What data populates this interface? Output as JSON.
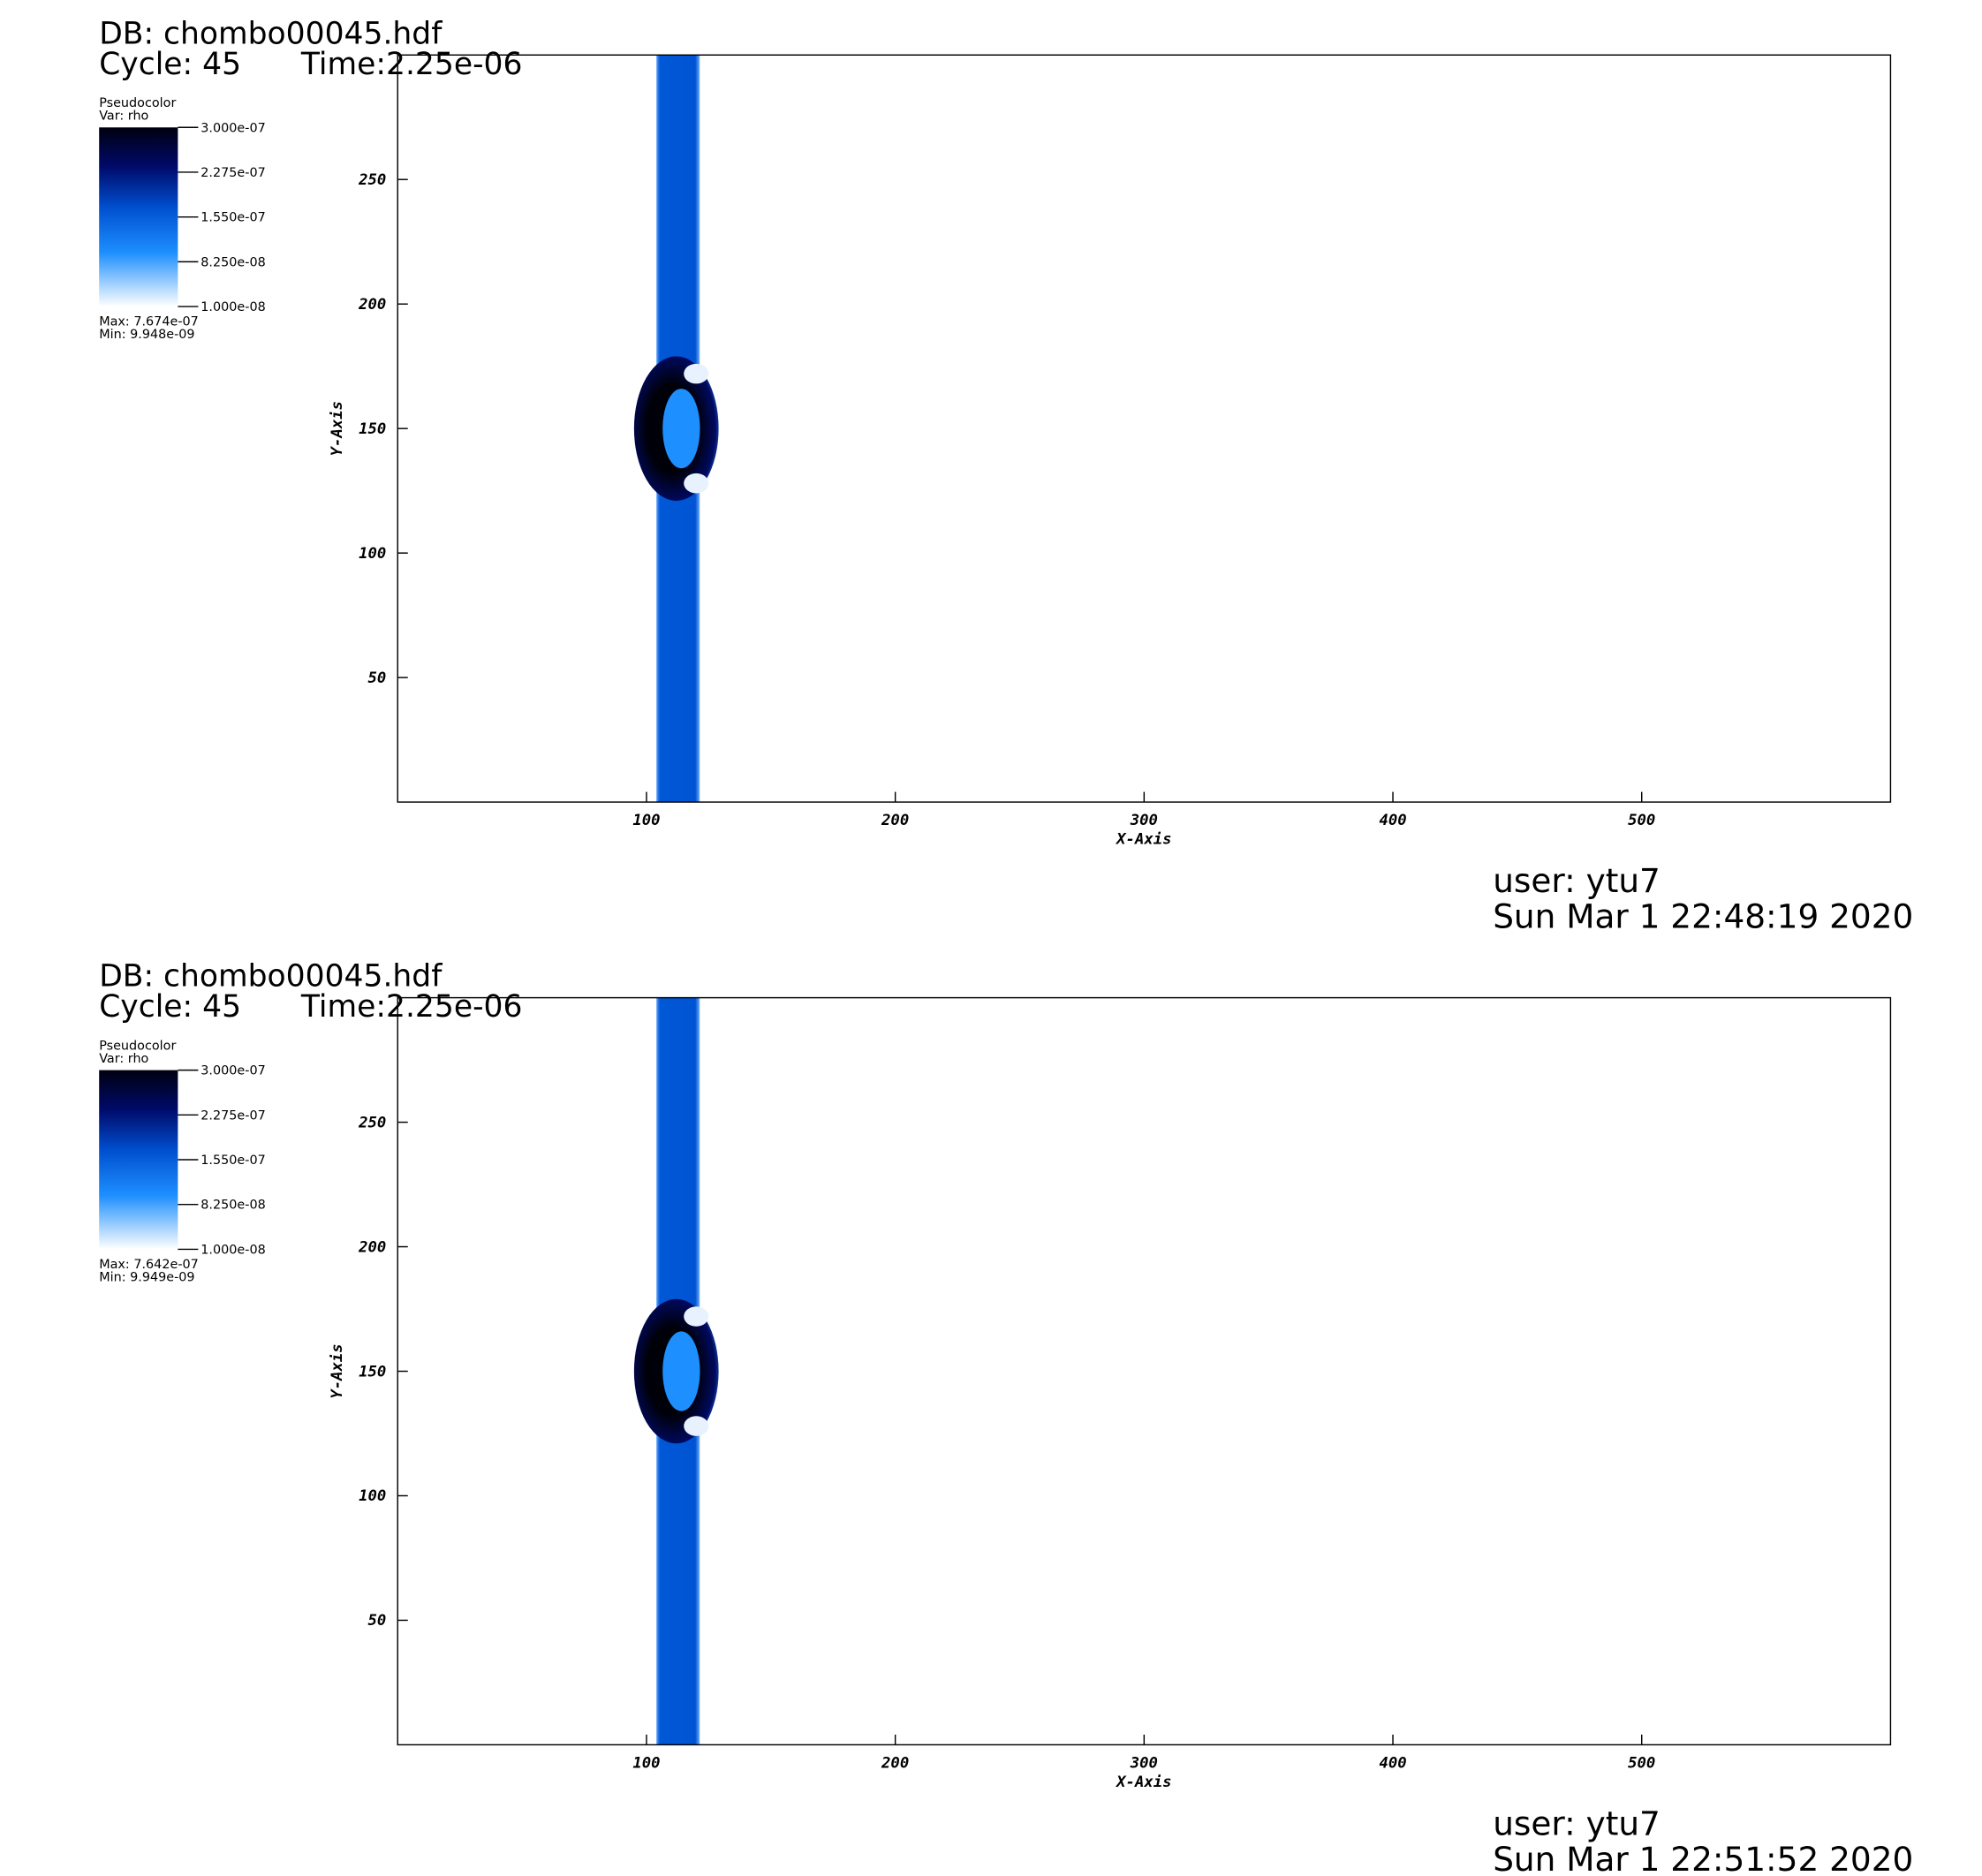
{
  "chart_data": [
    {
      "type": "pseudocolor",
      "db": "DB: chombo00045.hdf",
      "cycle": "Cycle: 45",
      "time": "Time:2.25e-06",
      "legend_title": "Pseudocolor",
      "legend_var": "Var: rho",
      "colorbar_lim": [
        1e-08,
        3e-07
      ],
      "colorbar_ticks": [
        {
          "value": 3e-07,
          "label": "3.000e-07"
        },
        {
          "value": 2.275e-07,
          "label": "2.275e-07"
        },
        {
          "value": 1.55e-07,
          "label": "1.550e-07"
        },
        {
          "value": 8.25e-08,
          "label": "8.250e-08"
        },
        {
          "value": 1e-08,
          "label": "1.000e-08"
        }
      ],
      "max_label": "Max:  7.674e-07",
      "min_label": "Min:  9.948e-09",
      "xlabel": "X-Axis",
      "ylabel": "Y-Axis",
      "xlim": [
        0,
        600
      ],
      "ylim": [
        0,
        300
      ],
      "xticks": [
        100,
        200,
        300,
        400,
        500
      ],
      "yticks": [
        50,
        100,
        150,
        200,
        250
      ],
      "user": "user: ytu7",
      "date": "Sun Mar  1 22:48:19 2020"
    },
    {
      "type": "pseudocolor",
      "db": "DB: chombo00045.hdf",
      "cycle": "Cycle: 45",
      "time": "Time:2.25e-06",
      "legend_title": "Pseudocolor",
      "legend_var": "Var: rho",
      "colorbar_lim": [
        1e-08,
        3e-07
      ],
      "colorbar_ticks": [
        {
          "value": 3e-07,
          "label": "3.000e-07"
        },
        {
          "value": 2.275e-07,
          "label": "2.275e-07"
        },
        {
          "value": 1.55e-07,
          "label": "1.550e-07"
        },
        {
          "value": 8.25e-08,
          "label": "8.250e-08"
        },
        {
          "value": 1e-08,
          "label": "1.000e-08"
        }
      ],
      "max_label": "Max:  7.642e-07",
      "min_label": "Min:  9.949e-09",
      "xlabel": "X-Axis",
      "ylabel": "Y-Axis",
      "xlim": [
        0,
        600
      ],
      "ylim": [
        0,
        300
      ],
      "xticks": [
        100,
        200,
        300,
        400,
        500
      ],
      "yticks": [
        50,
        100,
        150,
        200,
        250
      ],
      "user": "user: ytu7",
      "date": "Sun Mar  1 22:51:52 2020"
    }
  ]
}
